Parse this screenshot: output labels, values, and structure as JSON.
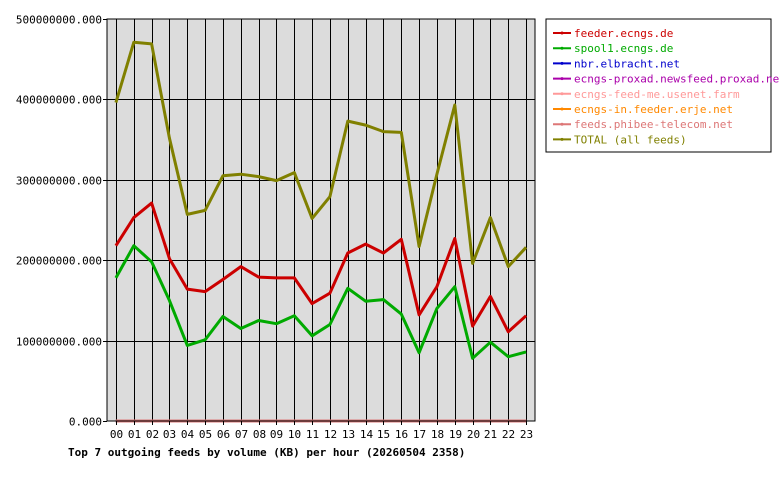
{
  "chart_data": {
    "type": "line",
    "title": "Top 7 outgoing feeds by volume (KB) per hour (20260504 2358)",
    "xlabel": "",
    "ylabel": "",
    "categories": [
      "00",
      "01",
      "02",
      "03",
      "04",
      "05",
      "06",
      "07",
      "08",
      "09",
      "10",
      "11",
      "12",
      "13",
      "14",
      "15",
      "16",
      "17",
      "18",
      "19",
      "20",
      "21",
      "22",
      "23"
    ],
    "y_tick_labels": [
      "0.000",
      "100000000.000",
      "200000000.000",
      "300000000.000",
      "400000000.000",
      "500000000.000"
    ],
    "ylim": [
      0,
      500000000
    ],
    "grid": true,
    "legend_position": "right",
    "series": [
      {
        "name": "feeder.ecngs.de",
        "color": "#cc0000",
        "values": [
          218000000,
          253000000,
          271000000,
          202000000,
          164000000,
          161000000,
          176000000,
          192000000,
          179000000,
          178000000,
          178000000,
          146000000,
          159000000,
          209000000,
          220000000,
          209000000,
          226000000,
          132000000,
          167000000,
          227000000,
          118000000,
          155000000,
          111000000,
          131000000
        ]
      },
      {
        "name": "spool1.ecngs.de",
        "color": "#00aa00",
        "values": [
          178000000,
          218000000,
          198000000,
          150000000,
          94000000,
          101000000,
          130000000,
          115000000,
          125000000,
          121000000,
          131000000,
          106000000,
          120000000,
          165000000,
          149000000,
          151000000,
          133000000,
          85000000,
          140000000,
          167000000,
          78000000,
          98000000,
          80000000,
          86000000
        ]
      },
      {
        "name": "nbr.elbracht.net",
        "color": "#0000cc",
        "values": [
          0,
          0,
          0,
          0,
          0,
          0,
          0,
          0,
          0,
          0,
          0,
          0,
          0,
          0,
          0,
          0,
          0,
          0,
          0,
          0,
          0,
          0,
          0,
          0
        ]
      },
      {
        "name": "ecngs-proxad.newsfeed.proxad.net",
        "color": "#aa00aa",
        "values": [
          0,
          0,
          0,
          0,
          0,
          0,
          0,
          0,
          0,
          0,
          0,
          0,
          0,
          0,
          0,
          0,
          0,
          0,
          0,
          0,
          0,
          0,
          0,
          0
        ]
      },
      {
        "name": "ecngs-feed-me.usenet.farm",
        "color": "#ff9999",
        "values": [
          0,
          0,
          0,
          0,
          0,
          0,
          0,
          0,
          0,
          0,
          0,
          0,
          0,
          0,
          0,
          0,
          0,
          0,
          0,
          0,
          0,
          0,
          0,
          0
        ]
      },
      {
        "name": "ecngs-in.feeder.erje.net",
        "color": "#ff8800",
        "values": [
          0,
          0,
          0,
          0,
          0,
          0,
          0,
          0,
          0,
          0,
          0,
          0,
          0,
          0,
          0,
          0,
          0,
          0,
          0,
          0,
          0,
          0,
          0,
          0
        ]
      },
      {
        "name": "feeds.phibee-telecom.net",
        "color": "#dd7777",
        "values": [
          0,
          0,
          0,
          0,
          0,
          0,
          0,
          0,
          0,
          0,
          0,
          0,
          0,
          0,
          0,
          0,
          0,
          0,
          0,
          0,
          0,
          0,
          0,
          0
        ]
      },
      {
        "name": "TOTAL (all feeds)",
        "color": "#808000",
        "values": [
          396000000,
          471000000,
          469000000,
          352000000,
          257000000,
          262000000,
          305000000,
          307000000,
          304000000,
          299000000,
          309000000,
          252000000,
          279000000,
          373000000,
          368000000,
          360000000,
          359000000,
          217000000,
          307000000,
          393000000,
          196000000,
          253000000,
          192000000,
          216000000
        ]
      }
    ]
  }
}
